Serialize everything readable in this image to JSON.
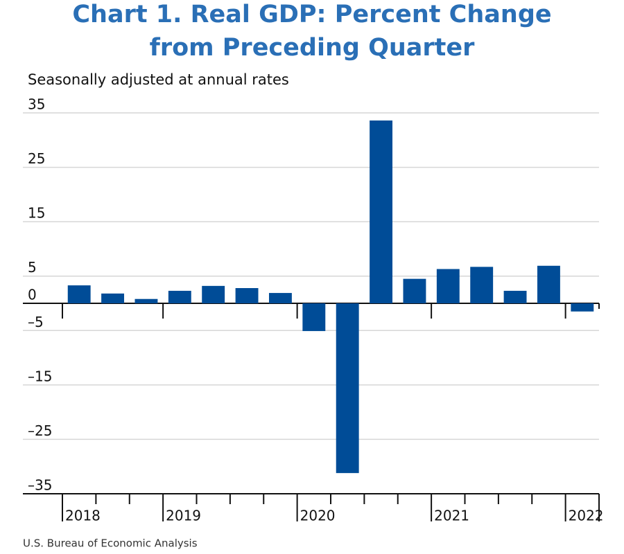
{
  "chart_data": {
    "type": "bar",
    "title": [
      "Chart 1. Real GDP: Percent Change",
      "from Preceding Quarter"
    ],
    "subtitle": "Seasonally adjusted at annual rates",
    "source": "U.S. Bureau of Economic Analysis",
    "categories": [
      "2018",
      null,
      null,
      "2019",
      null,
      null,
      null,
      "2020",
      null,
      null,
      null,
      "2021",
      null,
      null,
      null,
      "2022"
    ],
    "values": [
      3.3,
      1.8,
      0.8,
      2.3,
      3.2,
      2.8,
      1.9,
      -5.1,
      -31.2,
      33.6,
      4.5,
      6.3,
      6.7,
      2.3,
      6.9,
      -1.5
    ],
    "color": "#004c97",
    "ylim": [
      -35,
      35
    ],
    "yticks": [
      35,
      25,
      15,
      5,
      0,
      {
        "value": -5,
        "label": "–5"
      },
      {
        "value": -15,
        "label": "–15"
      },
      {
        "value": -25,
        "label": "–25"
      },
      {
        "value": -35,
        "label": "–35"
      }
    ],
    "grid": true
  }
}
